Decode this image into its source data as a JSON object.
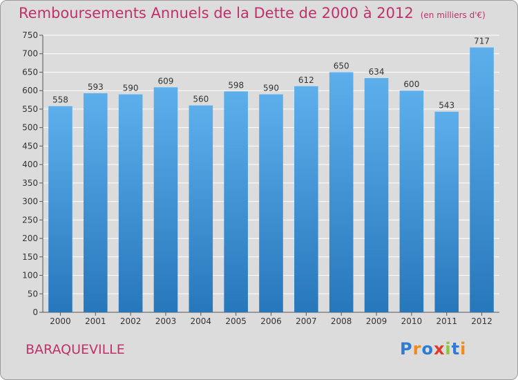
{
  "title": "Remboursements Annuels de la Dette de 2000 à 2012",
  "unit": "(en milliers d'€)",
  "commune": "BARAQUEVILLE",
  "brand": {
    "letters": [
      "P",
      "r",
      "o",
      "x",
      "i",
      "t",
      "i"
    ],
    "colors": [
      "#2e7bd6",
      "#f08a1c",
      "#2e7bd6",
      "#e03a2a",
      "#8cc43c",
      "#2e7bd6",
      "#f08a1c"
    ]
  },
  "colors": {
    "bar_top": "#5dafec",
    "bar_bottom": "#2777bb",
    "text": "#c0306a",
    "grid": "#ffffff"
  },
  "chart_data": {
    "type": "bar",
    "categories": [
      "2000",
      "2001",
      "2002",
      "2003",
      "2004",
      "2005",
      "2006",
      "2007",
      "2008",
      "2009",
      "2010",
      "2011",
      "2012"
    ],
    "values": [
      558,
      593,
      590,
      609,
      560,
      598,
      590,
      612,
      650,
      634,
      600,
      543,
      717
    ],
    "ylim": [
      0,
      750
    ],
    "yticks": [
      0,
      50,
      100,
      150,
      200,
      250,
      300,
      350,
      400,
      450,
      500,
      550,
      600,
      650,
      700,
      750
    ],
    "grid": true
  }
}
